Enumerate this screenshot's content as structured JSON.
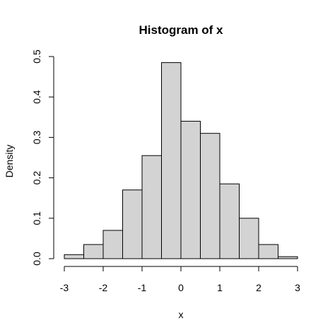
{
  "chart_data": {
    "type": "bar",
    "title": "Histogram of x",
    "xlabel": "x",
    "ylabel": "Density",
    "bin_edges": [
      -3,
      -2.5,
      -2,
      -1.5,
      -1,
      -0.5,
      0,
      0.5,
      1,
      1.5,
      2,
      2.5,
      3
    ],
    "values": [
      0.01,
      0.035,
      0.07,
      0.17,
      0.255,
      0.485,
      0.34,
      0.31,
      0.185,
      0.1,
      0.035,
      0.005
    ],
    "xlim": [
      -3,
      3
    ],
    "ylim": [
      0,
      0.5
    ],
    "x_ticks": [
      -3,
      -2,
      -1,
      0,
      1,
      2,
      3
    ],
    "x_tick_labels": [
      "-3",
      "-2",
      "-1",
      "0",
      "1",
      "2",
      "3"
    ],
    "y_ticks": [
      0,
      0.1,
      0.2,
      0.3,
      0.4,
      0.5
    ],
    "y_tick_labels": [
      "0.0",
      "0.1",
      "0.2",
      "0.3",
      "0.4",
      "0.5"
    ],
    "bar_fill": "#d3d3d3",
    "bar_stroke": "#000000",
    "grid": false,
    "legend": "none"
  }
}
